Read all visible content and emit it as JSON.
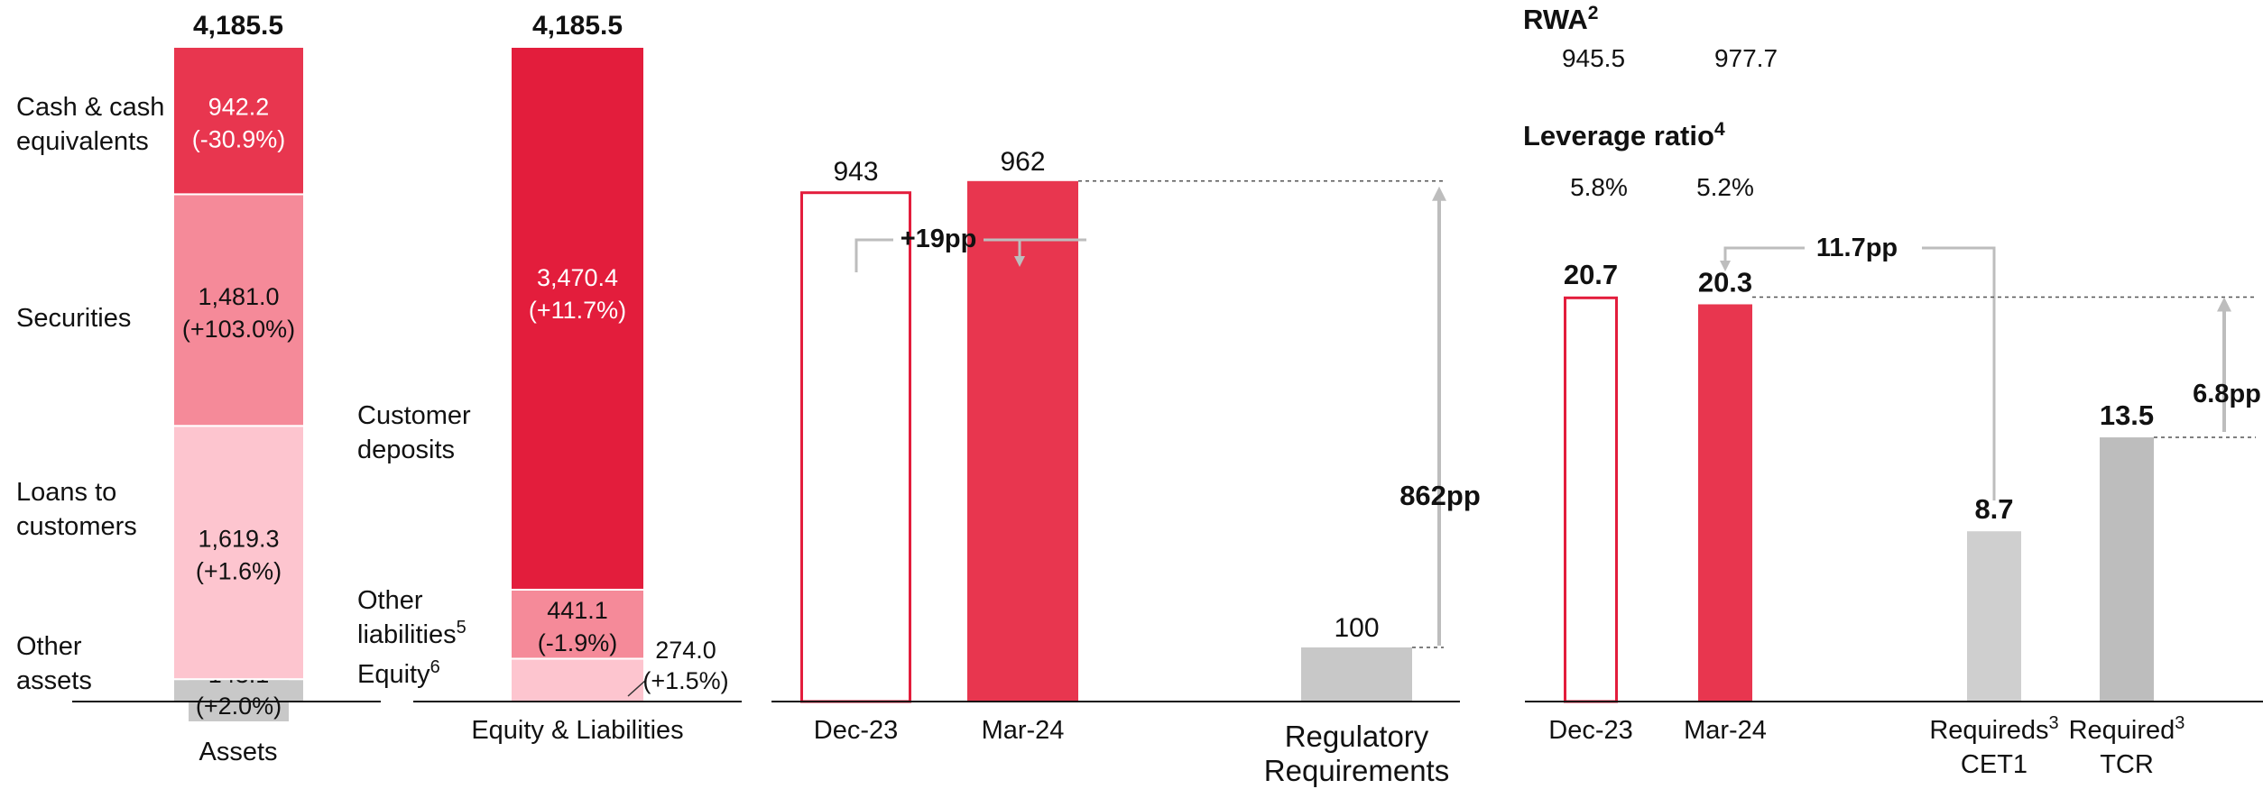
{
  "colors": {
    "red": "#E31D3C",
    "red_mid": "#E8364F",
    "red_light": "#F58A99",
    "pink": "#FDC5CF",
    "grey": "#C8C8C8",
    "grey_mid": "#BDBDBD",
    "grey_arrow": "#BDBDBD",
    "outline_red": "#E31D3C"
  },
  "chart_data": [
    {
      "type": "bar",
      "stacked": true,
      "xlabel": "",
      "categories": [
        "Assets",
        "Equity & Liabilities"
      ],
      "totals": [
        "4,185.5",
        "4,185.5"
      ],
      "series": [
        {
          "stack": "Assets",
          "name": "Other assets",
          "value": 143.1,
          "value_label": "143.1",
          "change_label": "(+2.0%)",
          "color_key": "grey"
        },
        {
          "stack": "Assets",
          "name": "Loans to customers",
          "value": 1619.3,
          "value_label": "1,619.3",
          "change_label": "(+1.6%)",
          "color_key": "pink"
        },
        {
          "stack": "Assets",
          "name": "Securities",
          "value": 1481.0,
          "value_label": "1,481.0",
          "change_label": "(+103.0%)",
          "color_key": "red_light"
        },
        {
          "stack": "Assets",
          "name": "Cash & cash equivalents",
          "value": 942.2,
          "value_label": "942.2",
          "change_label": "(-30.9%)",
          "color_key": "red_mid"
        },
        {
          "stack": "Equity & Liabilities",
          "name": "Equity",
          "name_sup": "6",
          "value": 274.0,
          "value_label": "274.0",
          "change_label": "(+1.5%)",
          "color_key": "pink"
        },
        {
          "stack": "Equity & Liabilities",
          "name": "Other liabilities",
          "name_sup": "5",
          "value": 441.1,
          "value_label": "441.1",
          "change_label": "(-1.9%)",
          "color_key": "red_light"
        },
        {
          "stack": "Equity & Liabilities",
          "name": "Customer deposits",
          "value": 3470.4,
          "value_label": "3,470.4",
          "change_label": "(+11.7%)",
          "color_key": "red"
        }
      ],
      "label_lines": {
        "Cash & cash equivalents": [
          "Cash & cash",
          "equivalents"
        ],
        "Securities": [
          "Securities"
        ],
        "Loans to customers": [
          "Loans to",
          "customers"
        ],
        "Other assets": [
          "Other",
          "assets"
        ],
        "Customer deposits": [
          "Customer",
          "deposits"
        ],
        "Other liabilities": [
          "Other",
          "liabilities"
        ],
        "Equity": [
          "Equity"
        ]
      }
    },
    {
      "type": "bar",
      "categories": [
        "Dec-23",
        "Mar-24",
        "Regulatory Requirements"
      ],
      "category_lines": [
        [
          "Dec-23"
        ],
        [
          "Mar-24"
        ],
        [
          "Regulatory",
          "Requirements"
        ]
      ],
      "values": [
        943,
        962,
        100
      ],
      "value_labels": [
        "943",
        "962",
        "100"
      ],
      "styles": [
        "outline",
        "red_mid",
        "grey"
      ],
      "annotations": [
        {
          "from": "Dec-23",
          "to": "Mar-24",
          "text": "+19pp"
        },
        {
          "from": "Regulatory Requirements",
          "to": "Mar-24",
          "text": "862pp"
        }
      ]
    },
    {
      "type": "bar",
      "categories": [
        "Dec-23",
        "Mar-24",
        "Requireds CET1",
        "Required TCR"
      ],
      "category_lines": [
        [
          "Dec-23"
        ],
        [
          "Mar-24"
        ],
        [
          "Requireds",
          "CET1"
        ],
        [
          "Required",
          "TCR"
        ]
      ],
      "category_sups": [
        "",
        "",
        "3",
        "3"
      ],
      "values": [
        20.7,
        20.3,
        8.7,
        13.5
      ],
      "value_labels": [
        "20.7",
        "20.3",
        "8.7",
        "13.5"
      ],
      "styles": [
        "outline",
        "red_mid",
        "grey_light",
        "grey"
      ],
      "annotations": [
        {
          "from": "Requireds CET1",
          "to": "Mar-24",
          "text": "11.7pp"
        },
        {
          "from": "Required TCR",
          "to": "Mar-24",
          "text": "6.8pp"
        }
      ],
      "side_metrics": [
        {
          "label": "RWA",
          "sup": "2",
          "values": [
            "945.5",
            "977.7"
          ]
        },
        {
          "label": "Leverage ratio",
          "sup": "4",
          "values": [
            "5.8%",
            "5.2%"
          ]
        }
      ]
    }
  ]
}
